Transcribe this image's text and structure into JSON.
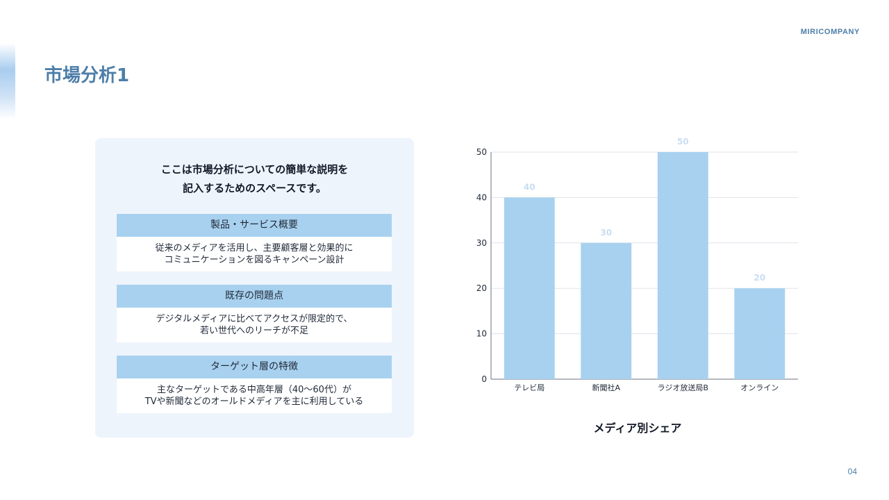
{
  "header": {
    "brand": "MIRICOMPANY",
    "title": "市場分析1",
    "page_number": "04"
  },
  "panel": {
    "intro": "ここは市場分析についての簡単な説明を\n記入するためのスペースです。",
    "blocks": [
      {
        "heading": "製品・サービス概要",
        "text": "従来のメディアを活用し、主要顧客層と効果的に\nコミュニケーションを図るキャンペーン設計"
      },
      {
        "heading": "既存の問題点",
        "text": "デジタルメディアに比べてアクセスが限定的で、\n若い世代へのリーチが不足"
      },
      {
        "heading": "ターゲット層の特徴",
        "text": "主なターゲットである中高年層（40〜60代）が\nTVや新聞などのオールドメディアを主に利用している"
      }
    ]
  },
  "chart_data": {
    "type": "bar",
    "title": "メディア別シェア",
    "categories": [
      "テレビ局",
      "新聞社A",
      "ラジオ放送局B",
      "オンライン"
    ],
    "values": [
      40,
      30,
      50,
      20
    ],
    "data_labels": [
      "40",
      "30",
      "50",
      "20"
    ],
    "yticks": [
      "0",
      "10",
      "20",
      "30",
      "40",
      "50"
    ],
    "ylim": [
      0,
      50
    ],
    "grid": true,
    "bar_color": "#a8d1ef",
    "label_color": "#c9def2"
  }
}
